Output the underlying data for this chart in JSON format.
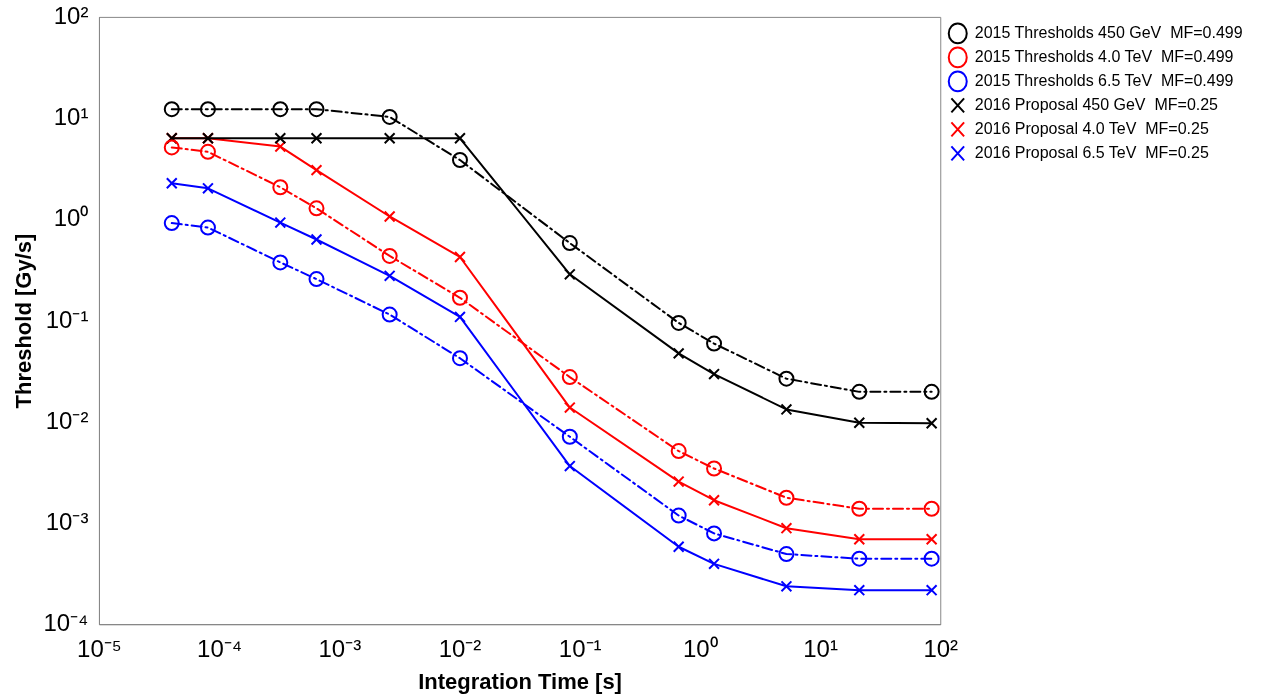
{
  "chart_data": {
    "type": "line",
    "xlabel": "Integration Time [s]",
    "ylabel": "Threshold [Gy/s]",
    "log": "xy",
    "x": [
      4e-05,
      8e-05,
      0.00032,
      0.00064,
      0.0026,
      0.01,
      0.082,
      0.66,
      1.3,
      5.2,
      21,
      84
    ],
    "xlim": [
      1e-05,
      100
    ],
    "ylim": [
      0.0001,
      100
    ],
    "xticks": [
      {
        "value": 1e-05,
        "label": "10⁻⁵"
      },
      {
        "value": 0.0001,
        "label": "10⁻⁴"
      },
      {
        "value": 0.001,
        "label": "10⁻³"
      },
      {
        "value": 0.01,
        "label": "10⁻²"
      },
      {
        "value": 0.1,
        "label": "10⁻¹"
      },
      {
        "value": 1,
        "label": "10⁰"
      },
      {
        "value": 10,
        "label": "10¹"
      },
      {
        "value": 100,
        "label": "10²"
      }
    ],
    "yticks": [
      {
        "value": 0.0001,
        "label": "10⁻⁴"
      },
      {
        "value": 0.001,
        "label": "10⁻³"
      },
      {
        "value": 0.01,
        "label": "10⁻²"
      },
      {
        "value": 0.1,
        "label": "10⁻¹"
      },
      {
        "value": 1,
        "label": "10⁰"
      },
      {
        "value": 10,
        "label": "10¹"
      },
      {
        "value": 100,
        "label": "10²"
      }
    ],
    "grid": false,
    "legend": "top right",
    "series": [
      {
        "name": "2015 Thresholds 450 GeV  MF=0.499",
        "color": "#000000",
        "marker": "circle",
        "line_style": "dashed",
        "values": [
          12.4,
          12.4,
          12.4,
          12.4,
          10.4,
          3.9,
          0.59,
          0.096,
          0.06,
          0.027,
          0.02,
          0.02
        ]
      },
      {
        "name": "2015 Thresholds 4.0 TeV  MF=0.499",
        "color": "#ff0000",
        "marker": "circle",
        "line_style": "dashed",
        "values": [
          5.2,
          4.7,
          2.1,
          1.3,
          0.44,
          0.17,
          0.028,
          0.0052,
          0.0035,
          0.0018,
          0.0014,
          0.0014
        ]
      },
      {
        "name": "2015 Thresholds 6.5 TeV  MF=0.499",
        "color": "#0000ff",
        "marker": "circle",
        "line_style": "dashed",
        "values": [
          0.93,
          0.84,
          0.38,
          0.26,
          0.116,
          0.043,
          0.0072,
          0.0012,
          0.0008,
          0.0005,
          0.00045,
          0.00045
        ]
      },
      {
        "name": "2016 Proposal 450 GeV  MF=0.25",
        "color": "#000000",
        "marker": "cross",
        "line_style": "solid",
        "values": [
          6.4,
          6.4,
          6.4,
          6.4,
          6.4,
          6.4,
          0.29,
          0.048,
          0.03,
          0.0134,
          0.0099,
          0.0098
        ]
      },
      {
        "name": "2016 Proposal 4.0 TeV  MF=0.25",
        "color": "#ff0000",
        "marker": "cross",
        "line_style": "solid",
        "values": [
          6.4,
          6.4,
          5.3,
          3.1,
          1.08,
          0.43,
          0.014,
          0.0026,
          0.0017,
          0.0009,
          0.0007,
          0.0007
        ]
      },
      {
        "name": "2016 Proposal 6.5 TeV  MF=0.25",
        "color": "#0000ff",
        "marker": "cross",
        "line_style": "solid",
        "values": [
          2.3,
          2.05,
          0.94,
          0.64,
          0.28,
          0.11,
          0.0037,
          0.00059,
          0.0004,
          0.00024,
          0.00022,
          0.00022
        ]
      }
    ]
  }
}
